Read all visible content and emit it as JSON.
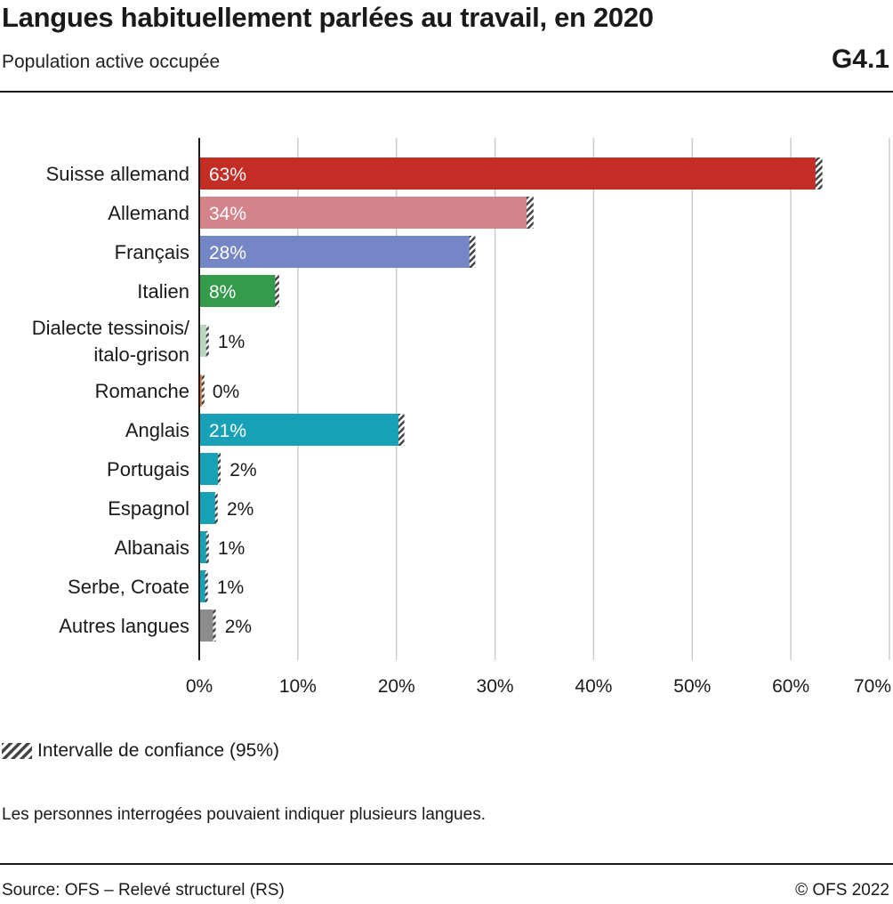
{
  "header": {
    "title": "Langues habituellement parlées au travail, en 2020",
    "subtitle": "Population active occupée",
    "code": "G4.1"
  },
  "legend": {
    "label": "Intervalle de confiance (95%)"
  },
  "note": "Les personnes interrogées pouvaient indiquer plusieurs langues.",
  "footer": {
    "source": "Source: OFS – Relevé structurel (RS)",
    "copyright": "© OFS 2022"
  },
  "colors": {
    "ci_hatch": "#444444",
    "grid": "#cccccc",
    "axis": "#1a1a1a"
  },
  "chart_data": {
    "type": "bar",
    "orientation": "horizontal",
    "title": "Langues habituellement parlées au travail, en 2020",
    "xlim": [
      0,
      70
    ],
    "ticks": [
      0,
      10,
      20,
      30,
      40,
      50,
      60,
      70
    ],
    "tick_labels": [
      "0%",
      "10%",
      "20%",
      "30%",
      "40%",
      "50%",
      "60%",
      "70%"
    ],
    "grid": true,
    "bars": [
      {
        "category": [
          "Suisse allemand"
        ],
        "value": 62.8,
        "ci": [
          62.5,
          63.2
        ],
        "label": "63%",
        "color": "#c42d25",
        "label_inside": true
      },
      {
        "category": [
          "Allemand"
        ],
        "value": 33.6,
        "ci": [
          33.2,
          33.9
        ],
        "label": "34%",
        "color": "#d4838a",
        "label_inside": true
      },
      {
        "category": [
          "Français"
        ],
        "value": 27.7,
        "ci": [
          27.4,
          28.0
        ],
        "label": "28%",
        "color": "#7486c6",
        "label_inside": true
      },
      {
        "category": [
          "Italien"
        ],
        "value": 7.9,
        "ci": [
          7.7,
          8.1
        ],
        "label": "8%",
        "color": "#349b4b",
        "label_inside": true
      },
      {
        "category": [
          "Dialecte tessinois/",
          "italo-grison"
        ],
        "value": 0.8,
        "ci": [
          0.7,
          0.9
        ],
        "label": "1%",
        "color": "#b9d7bf",
        "label_inside": false
      },
      {
        "category": [
          "Romanche"
        ],
        "value": 0.3,
        "ci": [
          0.25,
          0.35
        ],
        "label": "0%",
        "color": "#e07b35",
        "label_inside": false
      },
      {
        "category": [
          "Anglais"
        ],
        "value": 20.5,
        "ci": [
          20.2,
          20.8
        ],
        "label": "21%",
        "color": "#16a1b7",
        "label_inside": true
      },
      {
        "category": [
          "Portugais"
        ],
        "value": 2.0,
        "ci": [
          1.9,
          2.1
        ],
        "label": "2%",
        "color": "#16a1b7",
        "label_inside": false
      },
      {
        "category": [
          "Espagnol"
        ],
        "value": 1.7,
        "ci": [
          1.6,
          1.8
        ],
        "label": "2%",
        "color": "#16a1b7",
        "label_inside": false
      },
      {
        "category": [
          "Albanais"
        ],
        "value": 0.8,
        "ci": [
          0.7,
          0.9
        ],
        "label": "1%",
        "color": "#16a1b7",
        "label_inside": false
      },
      {
        "category": [
          "Serbe, Croate"
        ],
        "value": 0.7,
        "ci": [
          0.6,
          0.8
        ],
        "label": "1%",
        "color": "#16a1b7",
        "label_inside": false
      },
      {
        "category": [
          "Autres langues"
        ],
        "value": 1.5,
        "ci": [
          1.4,
          1.6
        ],
        "label": "2%",
        "color": "#8c8c8c",
        "label_inside": false
      }
    ]
  }
}
